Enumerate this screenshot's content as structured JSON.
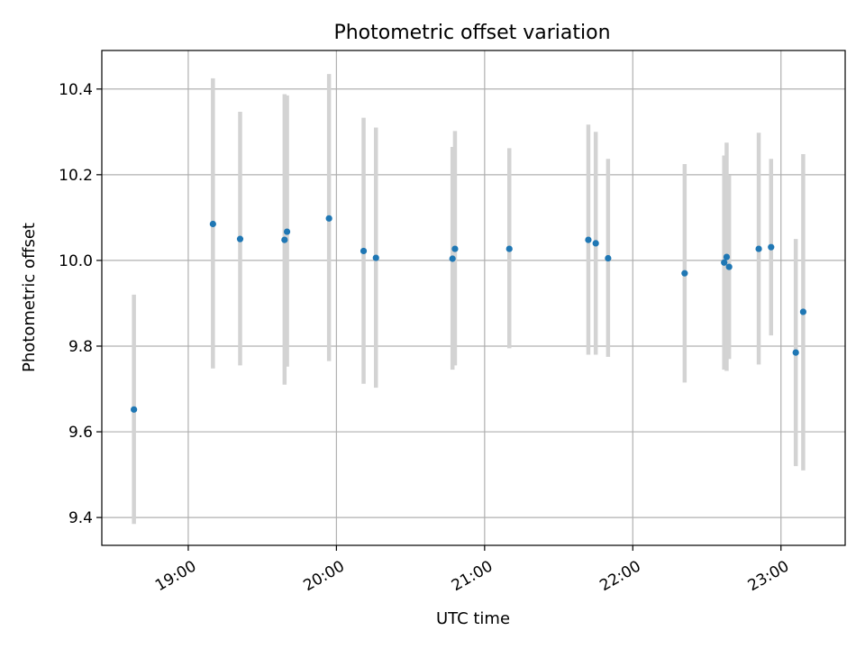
{
  "chart_data": {
    "type": "scatter",
    "title": "Photometric offset variation",
    "xlabel": "UTC time",
    "ylabel": "Photometric offset",
    "x_axis": "time",
    "xlim": [
      "18:25",
      "23:26"
    ],
    "ylim": [
      9.335,
      10.49
    ],
    "xticks": [
      "19:00",
      "20:00",
      "21:00",
      "22:00",
      "23:00"
    ],
    "yticks": [
      9.4,
      9.6,
      9.8,
      10.0,
      10.2,
      10.4
    ],
    "ytick_labels": [
      "9.4",
      "9.6",
      "9.8",
      "10.0",
      "10.2",
      "10.4"
    ],
    "grid": true,
    "point_color": "#1f77b4",
    "errorbar_color": "#d3d3d3",
    "points": [
      {
        "x": "18:38",
        "y": 9.652,
        "ylow": 9.385,
        "yhigh": 9.92
      },
      {
        "x": "19:10",
        "y": 10.085,
        "ylow": 9.748,
        "yhigh": 10.425
      },
      {
        "x": "19:21",
        "y": 10.05,
        "ylow": 9.755,
        "yhigh": 10.347
      },
      {
        "x": "19:39",
        "y": 10.048,
        "ylow": 9.71,
        "yhigh": 10.388
      },
      {
        "x": "19:40",
        "y": 10.067,
        "ylow": 9.752,
        "yhigh": 10.385
      },
      {
        "x": "19:57",
        "y": 10.098,
        "ylow": 9.765,
        "yhigh": 10.435
      },
      {
        "x": "20:11",
        "y": 10.022,
        "ylow": 9.712,
        "yhigh": 10.333
      },
      {
        "x": "20:16",
        "y": 10.006,
        "ylow": 9.703,
        "yhigh": 10.31
      },
      {
        "x": "20:47",
        "y": 10.004,
        "ylow": 9.745,
        "yhigh": 10.265
      },
      {
        "x": "20:48",
        "y": 10.027,
        "ylow": 9.755,
        "yhigh": 10.302
      },
      {
        "x": "21:10",
        "y": 10.027,
        "ylow": 9.795,
        "yhigh": 10.262
      },
      {
        "x": "21:42",
        "y": 10.048,
        "ylow": 9.78,
        "yhigh": 10.317
      },
      {
        "x": "21:45",
        "y": 10.04,
        "ylow": 9.78,
        "yhigh": 10.3
      },
      {
        "x": "21:50",
        "y": 10.005,
        "ylow": 9.775,
        "yhigh": 10.237
      },
      {
        "x": "22:21",
        "y": 9.97,
        "ylow": 9.715,
        "yhigh": 10.225
      },
      {
        "x": "22:37",
        "y": 9.995,
        "ylow": 9.745,
        "yhigh": 10.245
      },
      {
        "x": "22:38",
        "y": 10.008,
        "ylow": 9.742,
        "yhigh": 10.275
      },
      {
        "x": "22:39",
        "y": 9.985,
        "ylow": 9.77,
        "yhigh": 10.198
      },
      {
        "x": "22:51",
        "y": 10.027,
        "ylow": 9.757,
        "yhigh": 10.298
      },
      {
        "x": "22:56",
        "y": 10.031,
        "ylow": 9.825,
        "yhigh": 10.237
      },
      {
        "x": "23:06",
        "y": 9.785,
        "ylow": 9.52,
        "yhigh": 10.05
      },
      {
        "x": "23:09",
        "y": 9.88,
        "ylow": 9.51,
        "yhigh": 10.248
      }
    ]
  }
}
